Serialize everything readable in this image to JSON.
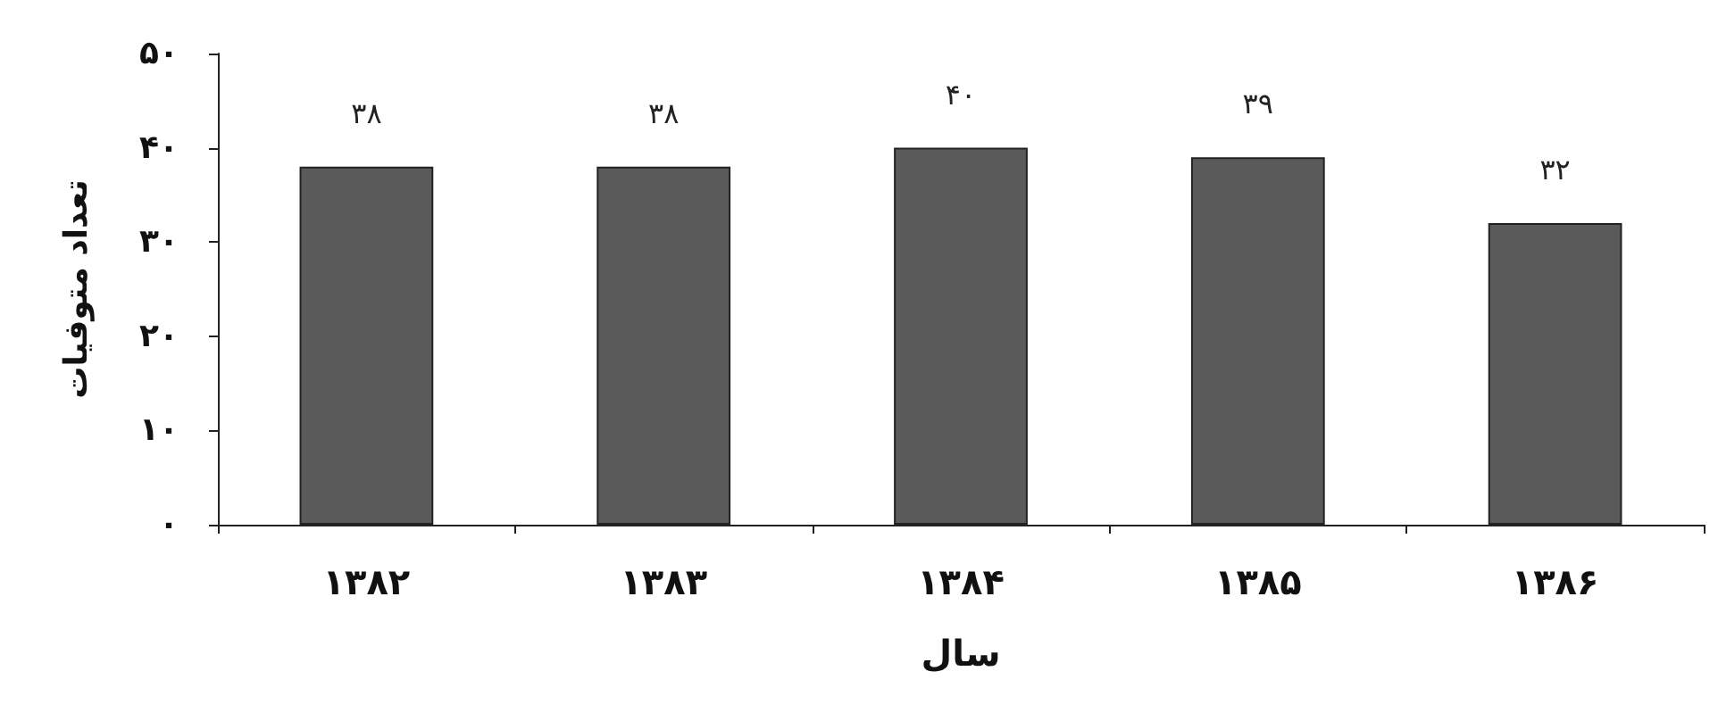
{
  "chart_data": {
    "type": "bar",
    "xlabel": "سال",
    "ylabel": "تعداد متوفیات",
    "categories": [
      "۱۳۸۲",
      "۱۳۸۳",
      "۱۳۸۴",
      "۱۳۸۵",
      "۱۳۸۶"
    ],
    "values": [
      38,
      38,
      40,
      39,
      32
    ],
    "value_labels": [
      "۳۸",
      "۳۸",
      "۴۰",
      "۳۹",
      "۳۲"
    ],
    "color": "#5a5a5a",
    "ylim": [
      0,
      50
    ],
    "yticks": [
      {
        "value": 0,
        "label": "۰"
      },
      {
        "value": 10,
        "label": "۱۰"
      },
      {
        "value": 20,
        "label": "۲۰"
      },
      {
        "value": 30,
        "label": "۳۰"
      },
      {
        "value": 40,
        "label": "۴۰"
      },
      {
        "value": 50,
        "label": "۵۰"
      }
    ],
    "grid": false
  }
}
